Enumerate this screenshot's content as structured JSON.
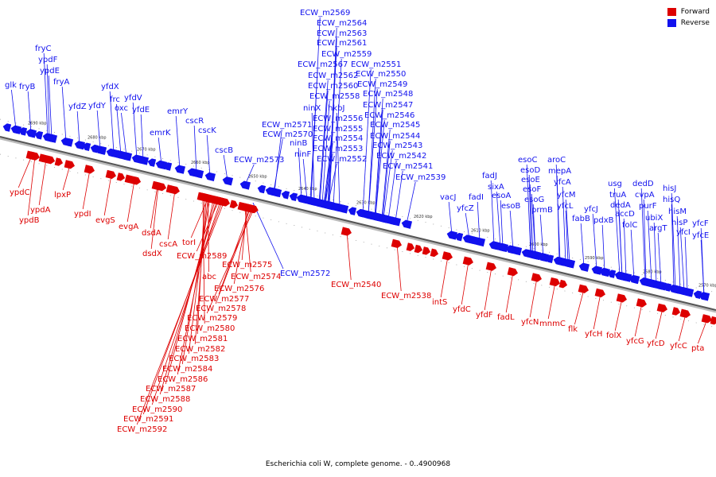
{
  "caption": "Escherichia coli W, complete genome. - 0..4900968",
  "legend": [
    {
      "label": "Forward",
      "color": "#dd0000"
    },
    {
      "label": "Reverse",
      "color": "#1111ee"
    }
  ],
  "colors": {
    "forward": "#dd0000",
    "reverse": "#1111ee",
    "axis": "#555555"
  },
  "ticks": [
    "2690 kbp",
    "2680 kbp",
    "2670 kbp",
    "2660 kbp",
    "2650 kbp",
    "2640 kbp",
    "2630 kbp",
    "2620 kbp",
    "2610 kbp",
    "2600 kbp",
    "2590 kbp",
    "2580 kbp",
    "2570 kbp"
  ],
  "genes_reverse": [
    "glk",
    "fryB",
    "fryC",
    "ypdF",
    "ypdE",
    "fryA",
    "yfdZ",
    "yfdY",
    "yfdX",
    "frc",
    "oxc",
    "yfdV",
    "yfdE",
    "emrK",
    "emrY",
    "cscR",
    "cscK",
    "cscB",
    "ECW_m2573",
    "ECW_m2572",
    "ECW_m2571",
    "ECW_m2570",
    "ninB",
    "ninF",
    "ECW_m2569",
    "ECW_m2564",
    "ECW_m2563",
    "ECW_m2561",
    "ECW_m2559",
    "ECW_m2567",
    "ECW_m2562",
    "ECW_m2560",
    "ECW_m2558",
    "ninX",
    "hkbJ",
    "ECW_m2556",
    "ECW_m2555",
    "ECW_m2554",
    "ECW_m2553",
    "ECW_m2552",
    "ECW_m2551",
    "ECW_m2550",
    "ECW_m2549",
    "ECW_m2548",
    "ECW_m2547",
    "ECW_m2546",
    "ECW_m2545",
    "ECW_m2544",
    "ECW_m2543",
    "ECW_m2542",
    "ECW_m2541",
    "ECW_m2539",
    "vacJ",
    "yfcZ",
    "fadI",
    "fadJ",
    "sixA",
    "esoA",
    "esoB",
    "esoC",
    "esoD",
    "esoE",
    "esoF",
    "esoG",
    "prmB",
    "aroC",
    "mepA",
    "yfcA",
    "yfcM",
    "yfcL",
    "fabB",
    "yfcJ",
    "pdxB",
    "usg",
    "truA",
    "accD",
    "folC",
    "dedD",
    "cvpA",
    "dedA",
    "purF",
    "ubiX",
    "argT",
    "hisJ",
    "hisQ",
    "hisM",
    "hisP",
    "yfcI",
    "yfcF",
    "yfcE"
  ],
  "genes_forward": [
    "ypdC",
    "ypdA",
    "ypdB",
    "lpxP",
    "ypdI",
    "evgS",
    "evgA",
    "dsdA",
    "dsdX",
    "cscA",
    "torI",
    "ECW_m2589",
    "ECW_m2575",
    "abc",
    "ECW_m2574",
    "ECW_m2576",
    "ECW_m2577",
    "ECW_m2578",
    "ECW_m2579",
    "ECW_m2580",
    "ECW_m2581",
    "ECW_m2582",
    "ECW_m2583",
    "ECW_m2584",
    "ECW_m2586",
    "ECW_m2587",
    "ECW_m2588",
    "ECW_m2590",
    "ECW_m2591",
    "ECW_m2592",
    "ECW_m2540",
    "ECW_m2538",
    "intS",
    "yfdC",
    "yfdF",
    "fadL",
    "yfcN",
    "mnmC",
    "flk",
    "yfcH",
    "folX",
    "yfcG",
    "yfcD",
    "yfcC",
    "pta"
  ]
}
